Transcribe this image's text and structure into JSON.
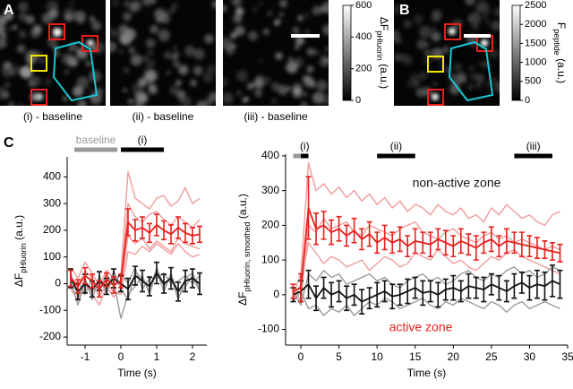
{
  "figure": {
    "panel_labels": [
      "A",
      "B",
      "C"
    ],
    "captions": [
      "(i) - baseline",
      "(ii) - baseline",
      "(iii) - baseline"
    ],
    "colorbars": [
      {
        "lim": [
          0,
          600
        ],
        "ticks": [
          0,
          200,
          400,
          600
        ],
        "label": {
          "main": "ΔF",
          "sub": "pHluorin",
          "unit": "(a.u.)"
        }
      },
      {
        "lim": [
          0,
          2500
        ],
        "ticks": [
          0,
          500,
          1000,
          1500,
          2000,
          2500
        ],
        "label": {
          "main": "F",
          "sub": "peptide",
          "unit": "(a.u.)"
        }
      }
    ]
  },
  "chart_data": [
    {
      "type": "line",
      "xlabel": "Time (s)",
      "ylabel": {
        "main": "ΔF",
        "sub": "pHluorin",
        "unit": "(a.u.)"
      },
      "xlim": [
        -1.5,
        2.4
      ],
      "xticks": [
        -1,
        0,
        1,
        2
      ],
      "ylim": [
        -230,
        475
      ],
      "yticks": [
        -200,
        -100,
        0,
        100,
        200,
        300,
        400
      ],
      "periods": [
        {
          "label": "baseline",
          "start": -1.3,
          "end": -0.1,
          "color": "#999999"
        },
        {
          "label": "(i)",
          "start": 0,
          "end": 1.2,
          "color": "#000000"
        }
      ],
      "x": [
        -1.4,
        -1.2,
        -1.0,
        -0.8,
        -0.6,
        -0.4,
        -0.2,
        0,
        0.2,
        0.4,
        0.6,
        0.8,
        1.0,
        1.2,
        1.4,
        1.6,
        1.8,
        2.0,
        2.2
      ],
      "series": [
        {
          "color": "#f29a9a",
          "values": [
            60,
            20,
            80,
            40,
            -10,
            50,
            20,
            30,
            420,
            320,
            300,
            280,
            320,
            330,
            290,
            310,
            360,
            300,
            320
          ]
        },
        {
          "color": "#f29a9a",
          "values": [
            -20,
            -60,
            10,
            -40,
            -80,
            -10,
            -50,
            -20,
            180,
            150,
            170,
            130,
            160,
            140,
            120,
            170,
            150,
            140,
            130
          ]
        },
        {
          "color": "#f29a9a",
          "values": [
            30,
            -10,
            50,
            20,
            -30,
            40,
            -10,
            10,
            300,
            250,
            230,
            260,
            270,
            240,
            220,
            250,
            230,
            210,
            240
          ]
        },
        {
          "color": "#f29a9a",
          "values": [
            0,
            -30,
            -20,
            10,
            -50,
            0,
            -30,
            -40,
            120,
            110,
            140,
            120,
            150,
            130,
            110,
            150,
            120,
            100,
            110
          ]
        },
        {
          "color": "#9a9a9a",
          "values": [
            40,
            -50,
            20,
            -60,
            30,
            -40,
            50,
            -20,
            -60,
            40,
            20,
            -30,
            60,
            -10,
            30,
            -60,
            20,
            40,
            -20
          ]
        },
        {
          "color": "#9a9a9a",
          "values": [
            -20,
            10,
            -40,
            20,
            -30,
            30,
            -10,
            40,
            0,
            60,
            -20,
            20,
            20,
            40,
            0,
            10,
            30,
            0,
            30
          ]
        },
        {
          "color": "#9a9a9a",
          "values": [
            10,
            -80,
            10,
            -30,
            0,
            -20,
            10,
            -130,
            -40,
            -10,
            30,
            -40,
            50,
            -30,
            40,
            -50,
            -10,
            30,
            -30
          ]
        },
        {
          "color": "#111111",
          "values": [
            20,
            -30,
            0,
            -20,
            10,
            -10,
            20,
            0,
            -20,
            30,
            10,
            -10,
            40,
            0,
            20,
            -30,
            10,
            20,
            0
          ],
          "errors": [
            35,
            30,
            35,
            30,
            35,
            30,
            35,
            30,
            40,
            35,
            40,
            35,
            40,
            35,
            40,
            35,
            40,
            35,
            40
          ]
        },
        {
          "color": "#e8201c",
          "values": [
            20,
            -10,
            30,
            10,
            -20,
            15,
            -5,
            10,
            230,
            200,
            210,
            190,
            220,
            200,
            185,
            210,
            190,
            180,
            185
          ],
          "errors": [
            30,
            25,
            30,
            25,
            30,
            25,
            30,
            25,
            50,
            40,
            40,
            35,
            40,
            35,
            35,
            40,
            35,
            30,
            30
          ]
        }
      ]
    },
    {
      "type": "line",
      "xlabel": "Time (s)",
      "ylabel": {
        "main": "ΔF",
        "sub": "pHluorin, smoothed",
        "unit": "(a.u.)"
      },
      "xlim": [
        -2,
        35
      ],
      "xticks": [
        0,
        5,
        10,
        15,
        20,
        25,
        30,
        35
      ],
      "ylim": [
        -145,
        405
      ],
      "yticks": [
        -100,
        0,
        100,
        200,
        300,
        400
      ],
      "periods": [
        {
          "start": -1,
          "end": 0,
          "color": "#999999"
        },
        {
          "label": "(i)",
          "start": 0,
          "end": 1,
          "color": "#000000"
        },
        {
          "label": "(ii)",
          "start": 10,
          "end": 15,
          "color": "#000000"
        },
        {
          "label": "(iii)",
          "start": 28,
          "end": 33,
          "color": "#000000"
        }
      ],
      "x": [
        -1,
        0,
        1,
        2,
        3,
        4,
        5,
        6,
        7,
        8,
        9,
        10,
        11,
        12,
        13,
        14,
        15,
        16,
        17,
        18,
        19,
        20,
        21,
        22,
        23,
        24,
        25,
        26,
        27,
        28,
        29,
        30,
        31,
        32,
        33,
        34
      ],
      "series": [
        {
          "color": "#f29a9a",
          "values": [
            0,
            60,
            380,
            300,
            320,
            290,
            310,
            280,
            300,
            270,
            290,
            260,
            280,
            250,
            270,
            240,
            260,
            250,
            230,
            260,
            240,
            230,
            250,
            220,
            230,
            210,
            250,
            230,
            260,
            240,
            220,
            230,
            210,
            200,
            230,
            240
          ]
        },
        {
          "color": "#f29a9a",
          "values": [
            20,
            -20,
            200,
            180,
            220,
            190,
            200,
            210,
            180,
            170,
            200,
            190,
            180,
            170,
            190,
            200,
            210,
            180,
            170,
            160,
            180,
            190,
            170,
            160,
            150,
            170,
            180,
            160,
            170,
            150,
            160,
            150,
            140,
            130,
            140,
            130
          ]
        },
        {
          "color": "#f29a9a",
          "values": [
            -10,
            30,
            150,
            120,
            90,
            110,
            100,
            80,
            90,
            100,
            70,
            90,
            110,
            100,
            80,
            90,
            120,
            110,
            100,
            130,
            110,
            90,
            100,
            80,
            70,
            90,
            110,
            100,
            120,
            130,
            110,
            100,
            90,
            80,
            70,
            60
          ]
        },
        {
          "color": "#9a9a9a",
          "values": [
            -20,
            10,
            -40,
            -30,
            -60,
            -40,
            -50,
            -30,
            -60,
            -40,
            -20,
            -30,
            -10,
            -20,
            -40,
            -30,
            -20,
            -10,
            -30,
            -40,
            -20,
            -30,
            -10,
            -20,
            -30,
            -40,
            -20,
            -30,
            -50,
            -30,
            -20,
            -40,
            -30,
            -20,
            -30,
            -40
          ]
        },
        {
          "color": "#9a9a9a",
          "values": [
            10,
            -30,
            60,
            40,
            70,
            50,
            60,
            30,
            40,
            50,
            60,
            40,
            50,
            30,
            20,
            40,
            50,
            60,
            40,
            50,
            30,
            40,
            60,
            70,
            50,
            40,
            60,
            50,
            70,
            80,
            60,
            70,
            50,
            60,
            80,
            70
          ]
        },
        {
          "name": "non-active zone",
          "color": "#111111",
          "values": [
            0,
            10,
            30,
            -10,
            20,
            0,
            10,
            -10,
            0,
            -20,
            -10,
            0,
            10,
            -5,
            0,
            10,
            20,
            5,
            10,
            0,
            15,
            20,
            10,
            25,
            20,
            15,
            30,
            20,
            10,
            25,
            35,
            20,
            30,
            25,
            40,
            30
          ],
          "errors": [
            20,
            30,
            40,
            35,
            30,
            35,
            30,
            35,
            30,
            35,
            30,
            35,
            30,
            35,
            30,
            35,
            30,
            35,
            30,
            35,
            30,
            35,
            30,
            35,
            30,
            35,
            30,
            35,
            30,
            35,
            30,
            35,
            40,
            40,
            45,
            40
          ]
        },
        {
          "name": "active zone",
          "color": "#e8201c",
          "values": [
            10,
            20,
            250,
            190,
            200,
            180,
            190,
            170,
            185,
            160,
            175,
            150,
            165,
            150,
            160,
            140,
            155,
            150,
            145,
            160,
            150,
            140,
            155,
            145,
            135,
            150,
            160,
            140,
            155,
            150,
            145,
            140,
            135,
            130,
            125,
            120
          ],
          "errors": [
            20,
            40,
            90,
            45,
            40,
            35,
            35,
            30,
            35,
            30,
            35,
            30,
            35,
            30,
            35,
            30,
            35,
            30,
            35,
            30,
            35,
            30,
            35,
            30,
            35,
            30,
            35,
            30,
            35,
            30,
            35,
            30,
            30,
            25,
            25,
            25
          ]
        }
      ]
    }
  ]
}
